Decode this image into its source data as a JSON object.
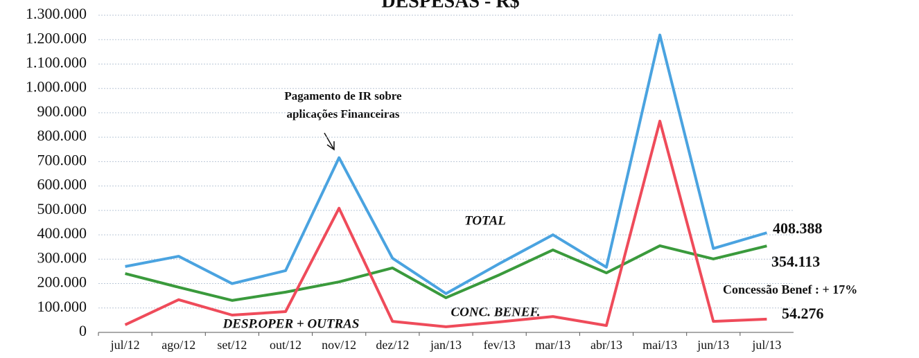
{
  "chart_data": {
    "type": "line",
    "title": "DESPESAS - R$",
    "categories": [
      "jul/12",
      "ago/12",
      "set/12",
      "out/12",
      "nov/12",
      "dez/12",
      "jan/13",
      "fev/13",
      "mar/13",
      "abr/13",
      "mai/13",
      "jun/13",
      "jul/13"
    ],
    "series": [
      {
        "name": "TOTAL",
        "color": "#4aa3e0",
        "values": [
          270000,
          312000,
          200000,
          253000,
          716000,
          304000,
          159000,
          282000,
          400000,
          267000,
          1219000,
          344000,
          408388
        ],
        "value_labels": [
          null,
          null,
          null,
          null,
          null,
          null,
          null,
          null,
          null,
          null,
          null,
          null,
          "408.388"
        ]
      },
      {
        "name": "CONC. BENEF.",
        "color": "#3a9a3c",
        "values": [
          241000,
          185000,
          131000,
          165000,
          207000,
          264000,
          142000,
          236000,
          338000,
          244000,
          355000,
          301000,
          354113
        ],
        "value_labels": [
          null,
          null,
          null,
          null,
          null,
          null,
          null,
          null,
          null,
          null,
          null,
          null,
          "354.113"
        ]
      },
      {
        "name": "DESP.OPER + OUTRAS",
        "color": "#ef4b5a",
        "values": [
          31000,
          134000,
          71000,
          85000,
          509000,
          45000,
          23000,
          43000,
          65000,
          28000,
          866000,
          45000,
          54276
        ],
        "value_labels": [
          null,
          null,
          null,
          null,
          null,
          null,
          null,
          null,
          null,
          null,
          null,
          null,
          "54.276"
        ]
      }
    ],
    "annotations": [
      "Pagamento de IR sobre",
      "aplicações Financeiras",
      "Concessão  Benef : + 17%"
    ],
    "ylim": [
      0,
      1300000
    ],
    "yticks": [
      0,
      {
        "value": 100000,
        "label": "100.000"
      },
      {
        "value": 200000,
        "label": "200.000"
      },
      {
        "value": 300000,
        "label": "300.000"
      },
      {
        "value": 400000,
        "label": "400.000"
      },
      {
        "value": 500000,
        "label": "500.000"
      },
      {
        "value": 600000,
        "label": "600.000"
      },
      {
        "value": 700000,
        "label": "700.000"
      },
      {
        "value": 800000,
        "label": "800.000"
      },
      {
        "value": 900000,
        "label": "900.000"
      },
      {
        "value": 1000000,
        "label": "1.000.000"
      },
      {
        "value": 1100000,
        "label": "1.100.000"
      },
      {
        "value": 1200000,
        "label": "1.200.000"
      },
      {
        "value": 1300000,
        "label": "1.300.000"
      }
    ],
    "grid": true
  }
}
